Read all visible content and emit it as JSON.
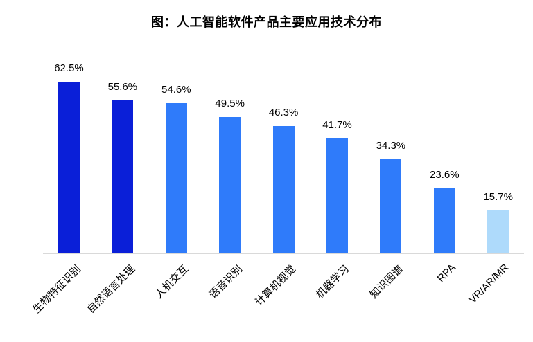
{
  "title": "图：人工智能软件产品主要应用技术分布",
  "chart_data": {
    "type": "bar",
    "title": "图：人工智能软件产品主要应用技术分布",
    "categories": [
      "生物特征识别",
      "自然语言处理",
      "人机交互",
      "语音识别",
      "计算机视觉",
      "机器学习",
      "知识图谱",
      "RPA",
      "VR/AR/MR"
    ],
    "values": [
      62.5,
      55.6,
      54.6,
      49.5,
      46.3,
      41.7,
      34.3,
      23.6,
      15.7
    ],
    "value_labels": [
      "62.5%",
      "55.6%",
      "54.6%",
      "49.5%",
      "46.3%",
      "41.7%",
      "34.3%",
      "23.6%",
      "15.7%"
    ],
    "bar_colors": [
      "#0a1fd8",
      "#0a1fd8",
      "#2f7bfa",
      "#2f7bfa",
      "#2f7bfa",
      "#2f7bfa",
      "#2f7bfa",
      "#2f7bfa",
      "#aedafb"
    ],
    "axis_line_color": "#d9d9d9",
    "text_color": "#000000",
    "xlabel": "",
    "ylabel": "",
    "ylim": [
      0,
      70
    ],
    "grid": false,
    "legend": false,
    "x_label_rotation_deg": 45
  }
}
